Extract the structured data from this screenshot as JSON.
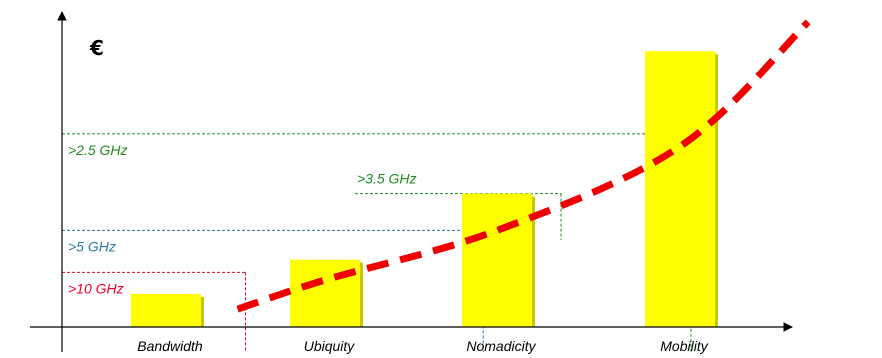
{
  "chart_data": {
    "type": "bar",
    "categories": [
      "Bandwidth",
      "Ubiquity",
      "Nomadicity",
      "Mobility"
    ],
    "values": [
      2.6,
      5.3,
      10.5,
      21.7
    ],
    "ylim": [
      0,
      24
    ],
    "y_unit_label": "€",
    "grid": false,
    "bar_color": "#ffff00",
    "bar_shadow_color": "#c8c800",
    "trend_color": "#ee0000",
    "trend": {
      "style": "dashed",
      "x": [
        0.45,
        1.0,
        2.0,
        3.0,
        3.7
      ],
      "y": [
        1.4,
        3.7,
        7.6,
        14.2,
        24.0
      ]
    },
    "frequency_annotations": [
      {
        "label": ">10 GHz",
        "value": 4.3,
        "category": 0.5,
        "color": "#e8002a"
      },
      {
        "label": ">5 GHz",
        "value": 7.6,
        "category": 1.92,
        "color": "#2a7aa0"
      },
      {
        "label": ">3.5 GHz",
        "value": 10.5,
        "category": 2.35,
        "color": "#1e8c1e"
      },
      {
        "label": ">2.5 GHz",
        "value": 15.2,
        "category": 3.06,
        "color": "#1e8c1e"
      }
    ]
  }
}
